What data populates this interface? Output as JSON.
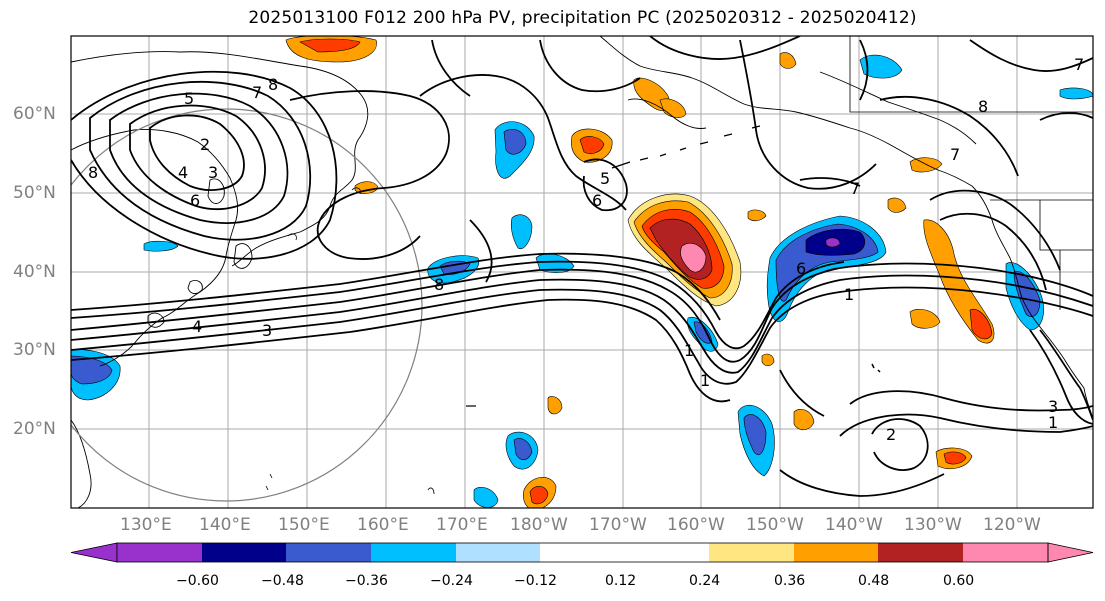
{
  "title": "2025013100 F012 200 hPa PV, precipitation PC (2025020312 - 2025020412)",
  "lat_labels": [
    "60°N",
    "50°N",
    "40°N",
    "30°N",
    "20°N"
  ],
  "lon_labels": [
    "130°E",
    "140°E",
    "150°E",
    "160°E",
    "170°E",
    "180°W",
    "170°W",
    "160°W",
    "150°W",
    "140°W",
    "130°W",
    "120°W"
  ],
  "contour_labels": [
    "5",
    "7",
    "8",
    "4",
    "3",
    "2",
    "6",
    "8",
    "5",
    "6",
    "7",
    "6",
    "1",
    "7",
    "4",
    "3",
    "1",
    "1",
    "3",
    "1",
    "2",
    "8",
    "7",
    "8"
  ],
  "colorbar": {
    "ticks": [
      "−0.60",
      "−0.48",
      "−0.36",
      "−0.24",
      "−0.12",
      "0.12",
      "0.24",
      "0.36",
      "0.48",
      "0.60"
    ],
    "colors": [
      "#9932cc",
      "#00008b",
      "#3a5bd0",
      "#00bfff",
      "#b0e0ff",
      "#ffffff",
      "#ffe680",
      "#ffa000",
      "#ff3c00",
      "#b22222",
      "#ff88b0"
    ]
  }
}
